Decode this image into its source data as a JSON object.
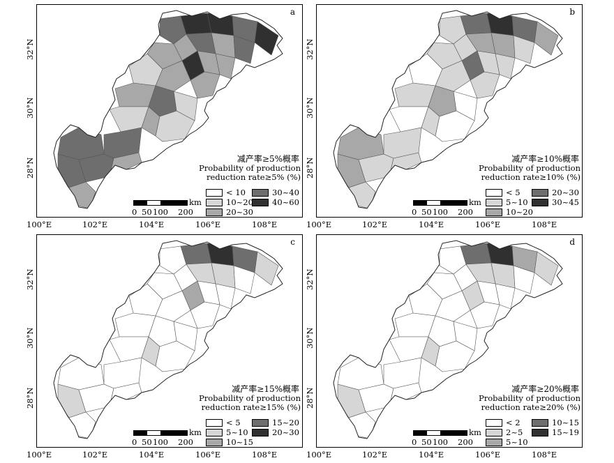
{
  "panels": [
    {
      "label": "a",
      "legend_cn": "减产率≥5%概率",
      "legend_en_1": "Probability of production",
      "legend_en_2": "reduction rate≥5% (%)",
      "classes": [
        "< 10",
        "10~20",
        "20~30",
        "30~40",
        "40~60"
      ]
    },
    {
      "label": "b",
      "legend_cn": "减产率≥10%概率",
      "legend_en_1": "Probability of production",
      "legend_en_2": "reduction rate≥10% (%)",
      "classes": [
        "< 5",
        "5~10",
        "10~20",
        "20~30",
        "30~45"
      ]
    },
    {
      "label": "c",
      "legend_cn": "减产率≥15%概率",
      "legend_en_1": "Probability of production",
      "legend_en_2": "reduction rate≥15% (%)",
      "classes": [
        "< 5",
        "5~10",
        "10~15",
        "15~20",
        "20~30"
      ]
    },
    {
      "label": "d",
      "legend_cn": "减产率≥20%概率",
      "legend_en_1": "Probability of production",
      "legend_en_2": "reduction rate≥20% (%)",
      "classes": [
        "< 2",
        "2~5",
        "5~10",
        "10~15",
        "15~19"
      ]
    }
  ],
  "class_colors": [
    "#ffffff",
    "#d6d6d6",
    "#a8a8a8",
    "#6e6e6e",
    "#303030"
  ],
  "scale": {
    "unit": "km",
    "ticks": [
      "0",
      "50",
      "100",
      "200"
    ]
  },
  "x_ticks": [
    "100°E",
    "102°E",
    "104°E",
    "106°E",
    "108°E"
  ],
  "y_ticks": [
    "28°N",
    "30°N",
    "32°N"
  ]
}
